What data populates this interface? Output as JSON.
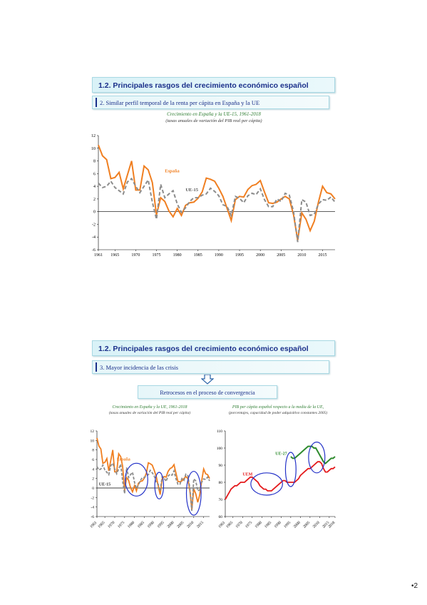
{
  "section1": {
    "heading": "1.2.  Principales rasgos del crecimiento económico español",
    "subheading": "2. Similar perfil temporal de la renta per cápita en España y la UE",
    "chart_title": "Crecimiento en España y la UE-15, 1961-2018",
    "chart_subtitle": "(tasas anuales de variación del PIB real per cápita)"
  },
  "section2": {
    "heading": "1.2.  Principales rasgos del crecimiento económico español",
    "subheading": "3. Mayor incidencia de las crisis",
    "arrow_icon": "down-arrow-icon",
    "callout": "Retrocesos en el proceso de convergencia",
    "left_chart_title": "Crecimiento en España y la UE, 1961-2018",
    "left_chart_subtitle": "(tasas anuales de variación del PIB real per cápita)",
    "right_chart_title": "PIB per cápita español respecto a la media de la UE,",
    "right_chart_subtitle": "(porcentajes, capacidad de poder adquisitivo constantes 2005)"
  },
  "page_number": "•2",
  "colors": {
    "espana": "#f07f21",
    "ue15": "#8c8c8c",
    "uem": "#e41a1c",
    "ue27": "#2e8b2e",
    "circle": "#2432c8",
    "title_green": "#2e7d32",
    "heading_blue": "#1a2f8a"
  },
  "chart_data": [
    {
      "type": "line",
      "x": [
        1961,
        1962,
        1963,
        1964,
        1965,
        1966,
        1967,
        1968,
        1969,
        1970,
        1971,
        1972,
        1973,
        1974,
        1975,
        1976,
        1977,
        1978,
        1979,
        1980,
        1981,
        1982,
        1983,
        1984,
        1985,
        1986,
        1987,
        1988,
        1989,
        1990,
        1991,
        1992,
        1993,
        1994,
        1995,
        1996,
        1997,
        1998,
        1999,
        2000,
        2001,
        2002,
        2003,
        2004,
        2005,
        2006,
        2007,
        2008,
        2009,
        2010,
        2011,
        2012,
        2013,
        2014,
        2015,
        2016,
        2017,
        2018
      ],
      "series": [
        {
          "name": "España",
          "values": [
            10.5,
            8.8,
            8.2,
            5.2,
            5.4,
            6.2,
            3.6,
            5.8,
            8.0,
            3.4,
            3.4,
            7.2,
            6.6,
            4.6,
            -0.5,
            2.2,
            1.6,
            0.1,
            -0.8,
            0.5,
            -0.6,
            1.0,
            1.4,
            1.5,
            2.1,
            3.1,
            5.3,
            5.1,
            4.8,
            3.7,
            2.4,
            0.5,
            -1.4,
            1.9,
            2.4,
            2.3,
            3.5,
            4.1,
            4.3,
            4.9,
            3.1,
            1.4,
            1.3,
            1.5,
            2.0,
            2.4,
            2.0,
            -0.5,
            -4.5,
            -0.2,
            -1.2,
            -3.0,
            -1.5,
            1.5,
            4.0,
            3.0,
            2.8,
            2.0
          ]
        },
        {
          "name": "UE-15",
          "values": [
            4.5,
            3.8,
            4.0,
            4.8,
            3.8,
            3.3,
            2.8,
            4.7,
            5.2,
            4.0,
            3.0,
            4.0,
            5.0,
            1.5,
            -1.2,
            4.3,
            2.2,
            2.8,
            3.3,
            1.2,
            -0.1,
            0.6,
            1.6,
            2.2,
            2.2,
            2.6,
            2.8,
            3.7,
            3.2,
            2.5,
            1.1,
            0.8,
            -0.6,
            2.4,
            2.1,
            1.4,
            2.5,
            2.9,
            2.7,
            3.6,
            1.9,
            0.8,
            0.8,
            2.0,
            1.6,
            2.9,
            2.6,
            0.0,
            -4.8,
            1.9,
            1.5,
            -0.6,
            -0.4,
            1.2,
            1.9,
            1.8,
            2.3,
            1.5
          ]
        }
      ],
      "ylim": [
        -6,
        12
      ],
      "yticks": [
        -6,
        -4,
        -2,
        0,
        2,
        4,
        6,
        8,
        10,
        12
      ],
      "xticks": [
        1961,
        1965,
        1970,
        1975,
        1980,
        1985,
        1990,
        1995,
        2000,
        2005,
        2010,
        2015
      ]
    },
    {
      "type": "line",
      "x": [
        1961,
        1962,
        1963,
        1964,
        1965,
        1966,
        1967,
        1968,
        1969,
        1970,
        1971,
        1972,
        1973,
        1974,
        1975,
        1976,
        1977,
        1978,
        1979,
        1980,
        1981,
        1982,
        1983,
        1984,
        1985,
        1986,
        1987,
        1988,
        1989,
        1990,
        1991,
        1992,
        1993,
        1994,
        1995,
        1996,
        1997,
        1998,
        1999,
        2000,
        2001,
        2002,
        2003,
        2004,
        2005,
        2006,
        2007,
        2008,
        2009,
        2010,
        2011,
        2012,
        2013,
        2014,
        2015,
        2016,
        2017,
        2018
      ],
      "series": [
        {
          "name": "España",
          "values": [
            10.5,
            8.8,
            8.2,
            5.2,
            5.4,
            6.2,
            3.6,
            5.8,
            8.0,
            3.4,
            3.4,
            7.2,
            6.6,
            4.6,
            -0.5,
            2.2,
            1.6,
            0.1,
            -0.8,
            0.5,
            -0.6,
            1.0,
            1.4,
            1.5,
            2.1,
            3.1,
            5.3,
            5.1,
            4.8,
            3.7,
            2.4,
            0.5,
            -1.4,
            1.9,
            2.4,
            2.3,
            3.5,
            4.1,
            4.3,
            4.9,
            3.1,
            1.4,
            1.3,
            1.5,
            2.0,
            2.4,
            2.0,
            -0.5,
            -4.5,
            -0.2,
            -1.2,
            -3.0,
            -1.5,
            1.5,
            4.0,
            3.0,
            2.8,
            2.0
          ]
        },
        {
          "name": "UE-15",
          "values": [
            4.5,
            3.8,
            4.0,
            4.8,
            3.8,
            3.3,
            2.8,
            4.7,
            5.2,
            4.0,
            3.0,
            4.0,
            5.0,
            1.5,
            -1.2,
            4.3,
            2.2,
            2.8,
            3.3,
            1.2,
            -0.1,
            0.6,
            1.6,
            2.2,
            2.2,
            2.6,
            2.8,
            3.7,
            3.2,
            2.5,
            1.1,
            0.8,
            -0.6,
            2.4,
            2.1,
            1.4,
            2.5,
            2.9,
            2.7,
            3.6,
            1.9,
            0.8,
            0.8,
            2.0,
            1.6,
            2.9,
            2.6,
            0.0,
            -4.8,
            1.9,
            1.5,
            -0.6,
            -0.4,
            1.2,
            1.9,
            1.8,
            2.3,
            1.5
          ]
        }
      ],
      "ylim": [
        -6,
        12
      ],
      "yticks": [
        -6,
        -4,
        -2,
        0,
        2,
        4,
        6,
        8,
        10,
        12
      ],
      "xticks": [
        1961,
        1965,
        1970,
        1975,
        1980,
        1985,
        1990,
        1995,
        2000,
        2005,
        2010,
        2015
      ],
      "highlighted_ranges": [
        [
          1976,
          1986
        ],
        [
          1991,
          1994
        ],
        [
          2007,
          2013
        ]
      ]
    },
    {
      "type": "line",
      "x": [
        1961,
        1962,
        1963,
        1964,
        1965,
        1966,
        1967,
        1968,
        1969,
        1970,
        1971,
        1972,
        1973,
        1974,
        1975,
        1976,
        1977,
        1978,
        1979,
        1980,
        1981,
        1982,
        1983,
        1984,
        1985,
        1986,
        1987,
        1988,
        1989,
        1990,
        1991,
        1992,
        1993,
        1994,
        1995,
        1996,
        1997,
        1998,
        1999,
        2000,
        2001,
        2002,
        2003,
        2004,
        2005,
        2006,
        2007,
        2008,
        2009,
        2010,
        2011,
        2012,
        2013,
        2014,
        2015,
        2016,
        2017,
        2018
      ],
      "series": [
        {
          "name": "UEM",
          "values": [
            70,
            72,
            74,
            76,
            77,
            78,
            78,
            79,
            80,
            80,
            80,
            81,
            82,
            83,
            83,
            82,
            81,
            80,
            78,
            77,
            76,
            76,
            75,
            75,
            75,
            76,
            77,
            78,
            79,
            80,
            81,
            81,
            80,
            80,
            80,
            80,
            80,
            81,
            82,
            84,
            85,
            86,
            87,
            88,
            88,
            89,
            90,
            91,
            92,
            92,
            91,
            88,
            86,
            86,
            87,
            88,
            88,
            89
          ]
        },
        {
          "name": "UE-27",
          "values": [
            null,
            null,
            null,
            null,
            null,
            null,
            null,
            null,
            null,
            null,
            null,
            null,
            null,
            null,
            null,
            null,
            null,
            null,
            null,
            null,
            null,
            null,
            null,
            null,
            null,
            null,
            null,
            null,
            null,
            null,
            null,
            null,
            null,
            null,
            95,
            94,
            94,
            95,
            96,
            97,
            98,
            99,
            100,
            101,
            101,
            101,
            100,
            100,
            98,
            96,
            94,
            92,
            91,
            92,
            93,
            94,
            94,
            95
          ]
        }
      ],
      "ylim": [
        60,
        110
      ],
      "yticks": [
        60,
        70,
        80,
        90,
        100,
        110
      ],
      "xticks": [
        1961,
        1965,
        1970,
        1975,
        1980,
        1985,
        1990,
        1995,
        2000,
        2005,
        2010,
        2015,
        2018
      ],
      "highlighted_ranges": [
        [
          1975,
          1990
        ],
        [
          1993,
          1997
        ],
        [
          2005,
          2012
        ]
      ]
    }
  ],
  "chart_labels": {
    "c1_espana": "España",
    "c1_ue15": "UE-15",
    "c2_espana": "España",
    "c2_ue15": "UE-15",
    "c3_uem": "UEM",
    "c3_ue27": "UE-27"
  }
}
